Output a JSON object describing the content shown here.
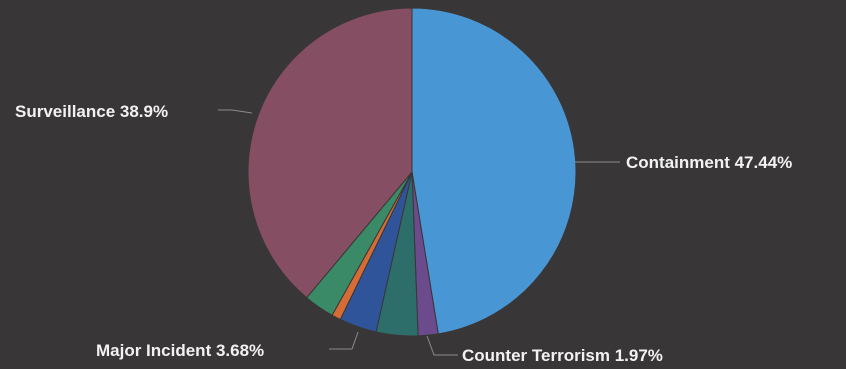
{
  "chart_data": {
    "type": "pie",
    "slices": [
      {
        "name": "Containment",
        "value": 47.44,
        "color": "#4896d3",
        "label": "Containment 47.44%"
      },
      {
        "name": "Counter Terrorism",
        "value": 1.97,
        "color": "#6b4b8b",
        "label": "Counter Terrorism 1.97%"
      },
      {
        "name": "",
        "value": 4.11,
        "color": "#2d6e6a",
        "label": ""
      },
      {
        "name": "Major Incident",
        "value": 3.68,
        "color": "#2f549a",
        "label": "Major Incident 3.68%"
      },
      {
        "name": "",
        "value": 0.9,
        "color": "#d56b35",
        "label": ""
      },
      {
        "name": "",
        "value": 3.0,
        "color": "#3b8a67",
        "label": ""
      },
      {
        "name": "Surveillance",
        "value": 38.9,
        "color": "#854e63",
        "label": "Surveillance 38.9%"
      }
    ]
  }
}
